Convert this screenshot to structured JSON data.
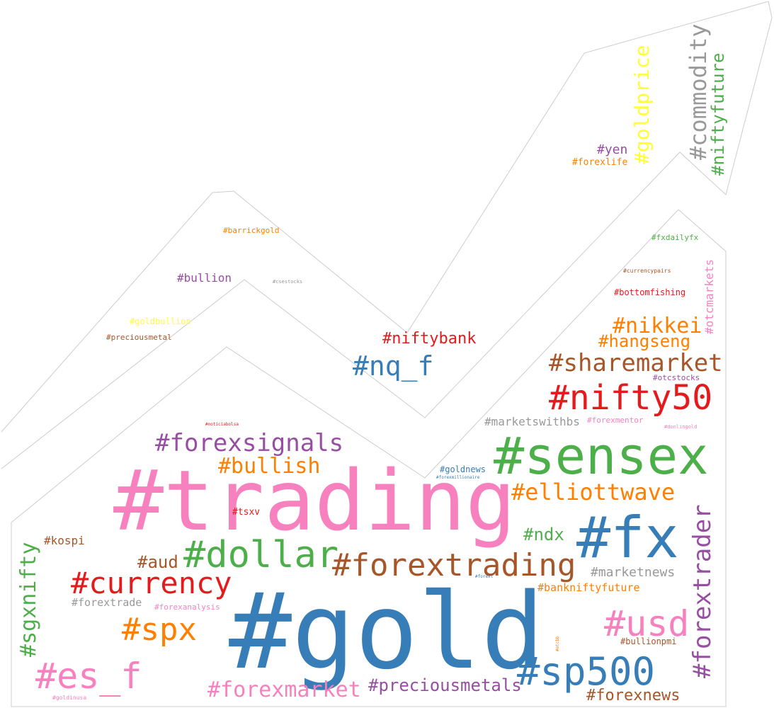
{
  "colors": {
    "pink": "#f781bf",
    "blue": "#377eb8",
    "green": "#4daf4a",
    "red": "#e41a1c",
    "orange": "#ff7f00",
    "brown": "#a65628",
    "purple": "#984ea3",
    "gray": "#999999",
    "yellow": "#ffff33",
    "outline": "#cccccc"
  },
  "words": {
    "trading": "#trading",
    "gold": "#gold",
    "sensex": "#sensex",
    "fx": "#fx",
    "dollar": "#dollar",
    "nifty50": "#nifty50",
    "forextrading": "#forextrading",
    "currency": "#currency",
    "sp500": "#sp500",
    "usd": "#usd",
    "es_f": "#es_f",
    "spx": "#spx",
    "forextrader": "#forextrader",
    "sgxnifty": "#sgxnifty",
    "nq_f": "#nq_f",
    "sharemarket": "#sharemarket",
    "forexsignals": "#forexsignals",
    "elliottwave": "#elliottwave",
    "commodity": "#commodity",
    "goldprice": "#goldprice",
    "niftyfuture": "#niftyfuture",
    "bullish": "#bullish",
    "forexmarket": "#forexmarket",
    "nikkei": "#nikkei",
    "preciousmetals": "#preciousmetals",
    "forexnews": "#forexnews",
    "hangseng": "#hangseng",
    "niftybank": "#niftybank",
    "ndx": "#ndx",
    "aud": "#aud",
    "marketnews": "#marketnews",
    "marketswithbs": "#marketswithbs",
    "bullion": "#bullion",
    "yen": "#yen",
    "banknifty": "#bankniftyfuture",
    "kospi": "#kospi",
    "forextrade": "#forextrade",
    "otcmarkets": "#otcmarkets",
    "forexlife": "#forexlife",
    "goldnews": "#goldnews",
    "tsxv": "#tsxv",
    "forexanalysis": "#forexanalysis",
    "forexmentor": "#forexmentor",
    "bottomfishing": "#bottomfishing",
    "bullionpmi": "#bullionpmi",
    "barrickgold": "#barrickgold",
    "goldbullion": "#goldbullion",
    "preciousmetal": "#preciousmetal",
    "fxdailyfx": "#fxdailyfx",
    "otcstocks": "#otcstocks",
    "currencypairs": "#currencypairs",
    "csestocks": "#csestocks",
    "forexmillionaire": "#forexmillionaire",
    "donlingold": "#donlingold",
    "noticiabolsa": "#noticiabolsa",
    "goldinusa": "#goldinusa",
    "forexl": "#forexl",
    "otcbb": "#otcbb"
  }
}
